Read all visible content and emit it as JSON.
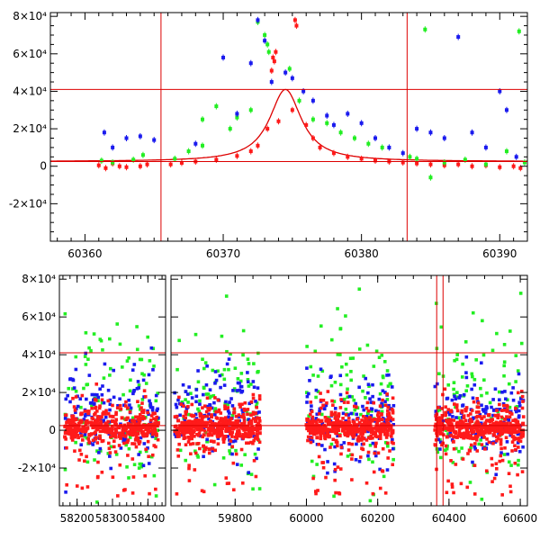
{
  "colors": {
    "red": "#ff1a1a",
    "green": "#22ee22",
    "blue": "#1a1aee",
    "line": "#dd0000",
    "frame": "#000000"
  },
  "chart_data": [
    {
      "type": "scatter",
      "name": "top-light-curve-zoom",
      "xlim": [
        60357.5,
        60392
      ],
      "ylim": [
        -40000,
        82000
      ],
      "x_ticks": [
        60360,
        60370,
        60380,
        60390
      ],
      "x_tick_labels": [
        "60360",
        "60370",
        "60380",
        "60390"
      ],
      "y_ticks": [
        -20000,
        0,
        20000,
        40000,
        60000,
        80000
      ],
      "y_tick_labels": [
        "-2×10⁴",
        "0",
        "2×10⁴",
        "4×10⁴",
        "6×10⁴",
        "8×10⁴"
      ],
      "hlines": [
        41000,
        2500
      ],
      "vlines": [
        60365.5,
        60383.3
      ],
      "model": {
        "peak_x": 60374.5,
        "peak_y": 41000,
        "baseline": 2500,
        "width": 1.4
      },
      "series": [
        {
          "color": "red",
          "points": [
            [
              60361.0,
              500
            ],
            [
              60361.5,
              -1000
            ],
            [
              60362.0,
              1500
            ],
            [
              60362.5,
              0
            ],
            [
              60363.0,
              -500
            ],
            [
              60364.0,
              0
            ],
            [
              60364.5,
              1000
            ],
            [
              60366.2,
              1000
            ],
            [
              60367.0,
              1800
            ],
            [
              60368.0,
              2500
            ],
            [
              60369.5,
              3500
            ],
            [
              60371.0,
              5500
            ],
            [
              60372.0,
              8000
            ],
            [
              60372.5,
              11000
            ],
            [
              60373.2,
              20000
            ],
            [
              60373.5,
              51000
            ],
            [
              60373.6,
              58000
            ],
            [
              60373.7,
              56000
            ],
            [
              60373.8,
              61000
            ],
            [
              60374.0,
              24000
            ],
            [
              60375.0,
              30000
            ],
            [
              60375.2,
              78000
            ],
            [
              60375.3,
              75000
            ],
            [
              60376.0,
              22000
            ],
            [
              60376.5,
              15000
            ],
            [
              60377.0,
              10000
            ],
            [
              60378.0,
              7000
            ],
            [
              60379.0,
              5000
            ],
            [
              60380.0,
              4000
            ],
            [
              60381.0,
              3000
            ],
            [
              60382.0,
              2500
            ],
            [
              60383.0,
              2000
            ],
            [
              60384.0,
              1500
            ],
            [
              60385.0,
              1000
            ],
            [
              60386.0,
              500
            ],
            [
              60387.0,
              1000
            ],
            [
              60388.0,
              0
            ],
            [
              60389.0,
              500
            ],
            [
              60390.0,
              -500
            ],
            [
              60391.0,
              0
            ],
            [
              60391.5,
              -1000
            ]
          ]
        },
        {
          "color": "green",
          "points": [
            [
              60361.2,
              3000
            ],
            [
              60362.0,
              2000
            ],
            [
              60363.5,
              3500
            ],
            [
              60364.2,
              6000
            ],
            [
              60366.5,
              4000
            ],
            [
              60367.5,
              8000
            ],
            [
              60368.5,
              11000
            ],
            [
              60368.5,
              25000
            ],
            [
              60369.5,
              32000
            ],
            [
              60370.5,
              20000
            ],
            [
              60371.0,
              26000
            ],
            [
              60372.0,
              30000
            ],
            [
              60372.5,
              77000
            ],
            [
              60373.0,
              70000
            ],
            [
              60373.2,
              65000
            ],
            [
              60373.3,
              61000
            ],
            [
              60374.8,
              52000
            ],
            [
              60375.5,
              35000
            ],
            [
              60376.5,
              25000
            ],
            [
              60377.5,
              23000
            ],
            [
              60378.5,
              18000
            ],
            [
              60379.5,
              15000
            ],
            [
              60380.5,
              12000
            ],
            [
              60381.5,
              10000
            ],
            [
              60383.5,
              5000
            ],
            [
              60384.0,
              4000
            ],
            [
              60384.6,
              73000
            ],
            [
              60385.0,
              -6000
            ],
            [
              60386.0,
              2000
            ],
            [
              60387.5,
              3500
            ],
            [
              60389.0,
              1000
            ],
            [
              60390.5,
              8000
            ],
            [
              60391.4,
              72000
            ],
            [
              60391.8,
              2000
            ]
          ]
        },
        {
          "color": "blue",
          "points": [
            [
              60361.4,
              18000
            ],
            [
              60362.0,
              10000
            ],
            [
              60363.0,
              15000
            ],
            [
              60364.0,
              16000
            ],
            [
              60365.0,
              14000
            ],
            [
              60368.0,
              12000
            ],
            [
              60370.0,
              58000
            ],
            [
              60371.0,
              28000
            ],
            [
              60372.0,
              55000
            ],
            [
              60372.5,
              78000
            ],
            [
              60373.0,
              67000
            ],
            [
              60373.5,
              45000
            ],
            [
              60374.5,
              50000
            ],
            [
              60375.0,
              47000
            ],
            [
              60375.8,
              40000
            ],
            [
              60376.5,
              35000
            ],
            [
              60377.5,
              27000
            ],
            [
              60378.0,
              22000
            ],
            [
              60379.0,
              28000
            ],
            [
              60380.0,
              23000
            ],
            [
              60381.0,
              15000
            ],
            [
              60382.0,
              10000
            ],
            [
              60383.0,
              7000
            ],
            [
              60384.0,
              20000
            ],
            [
              60385.0,
              18000
            ],
            [
              60386.0,
              15000
            ],
            [
              60387.0,
              69000
            ],
            [
              60388.0,
              18000
            ],
            [
              60389.0,
              10000
            ],
            [
              60390.0,
              40000
            ],
            [
              60390.5,
              30000
            ],
            [
              60391.2,
              5000
            ]
          ]
        }
      ]
    },
    {
      "type": "scatter",
      "name": "bottom-light-curve-full",
      "segments": [
        {
          "xlim": [
            58150,
            58450
          ],
          "x_ticks": [
            58200,
            58300,
            58400
          ],
          "x_tick_labels": [
            "58200",
            "58300",
            "58400"
          ]
        },
        {
          "xlim": [
            59620,
            60620
          ],
          "x_ticks": [
            59800,
            60000,
            60200,
            60400,
            60600
          ],
          "x_tick_labels": [
            "59800",
            "60000",
            "60200",
            "60400",
            "60600"
          ]
        }
      ],
      "ylim": [
        -40000,
        82000
      ],
      "y_ticks": [
        -20000,
        0,
        20000,
        40000,
        60000,
        80000
      ],
      "y_tick_labels": [
        "-2×10⁴",
        "0",
        "2×10⁴",
        "4×10⁴",
        "6×10⁴",
        "8×10⁴"
      ],
      "hlines": [
        41000,
        2500
      ],
      "vlines": [
        60365.5,
        60383.3
      ],
      "seasons": [
        [
          58165,
          58430
        ],
        [
          59630,
          59870
        ],
        [
          60000,
          60245
        ],
        [
          60360,
          60610
        ]
      ]
    }
  ]
}
